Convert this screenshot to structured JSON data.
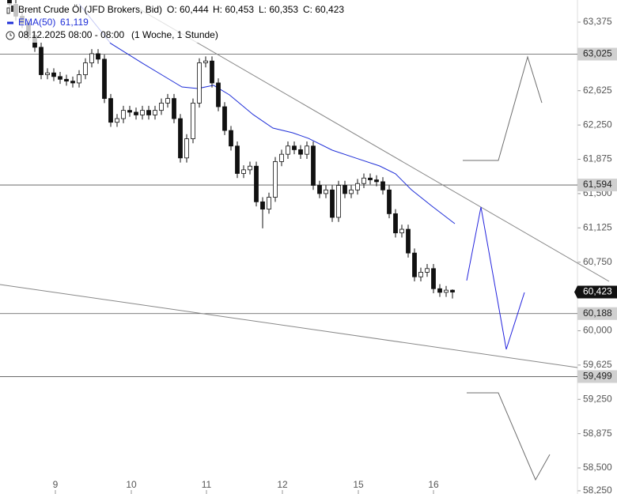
{
  "chart_data": {
    "type": "candlestick",
    "header": {
      "instrument": "Brent Crude Öl (JFD Brokers, Bid)",
      "open": "O: 60,444",
      "high": "H: 60,453",
      "low": "L: 60,353",
      "close": "C: 60,423",
      "ema_name": "EMA(50)",
      "ema_value": "61,119",
      "period": "08.12.2025 08:00 - 08:00",
      "interval": "(1 Woche, 1 Stunde)"
    },
    "xlim": [
      -1.5,
      89.75
    ],
    "ylim": [
      58.215,
      63.617
    ],
    "xticks": [
      {
        "value": 7.25,
        "label": "9"
      },
      {
        "value": 19.25,
        "label": "10"
      },
      {
        "value": 31.125,
        "label": "11"
      },
      {
        "value": 43.125,
        "label": "12"
      },
      {
        "value": 55.125,
        "label": "15"
      },
      {
        "value": 67,
        "label": "16"
      }
    ],
    "yticks": [
      {
        "value": 63.375,
        "label": "63,375"
      },
      {
        "value": 62.625,
        "label": "62,625"
      },
      {
        "value": 62.25,
        "label": "62,250"
      },
      {
        "value": 61.875,
        "label": "61,875"
      },
      {
        "value": 61.5,
        "label": "61,500"
      },
      {
        "value": 61.125,
        "label": "61,125"
      },
      {
        "value": 60.75,
        "label": "60,750"
      },
      {
        "value": 60,
        "label": "60,000"
      },
      {
        "value": 59.625,
        "label": "59,625"
      },
      {
        "value": 59.25,
        "label": "59,250"
      },
      {
        "value": 58.875,
        "label": "58,875"
      },
      {
        "value": 58.5,
        "label": "58,500"
      },
      {
        "value": 58.25,
        "label": "58,250"
      }
    ],
    "levels": [
      {
        "value": 63.025,
        "label": "63,025"
      },
      {
        "value": 61.594,
        "label": "61,594"
      },
      {
        "value": 60.188,
        "label": "60,188"
      },
      {
        "value": 59.499,
        "label": "59,499"
      }
    ],
    "last_price": {
      "value": 60.423,
      "label": "60,423"
    },
    "x": [
      0,
      1,
      2,
      3,
      4,
      5,
      6,
      7,
      8,
      9,
      10,
      11,
      12,
      13,
      14,
      15,
      16,
      17,
      18,
      19,
      20,
      21,
      22,
      23,
      24,
      25,
      26,
      27,
      28,
      29,
      30,
      31,
      32,
      33,
      34,
      35,
      36,
      37,
      38,
      39,
      40,
      41,
      42,
      43,
      44,
      45,
      46,
      47,
      48,
      49,
      50,
      51,
      52,
      53,
      54,
      55,
      56,
      57,
      58,
      59,
      60,
      61,
      62,
      63,
      64,
      65,
      66,
      67,
      68,
      69,
      70
    ],
    "open": [
      63.62,
      63.57,
      63.44,
      63.36,
      63.23,
      63.1,
      62.8,
      62.82,
      62.78,
      62.75,
      62.73,
      62.71,
      62.8,
      62.93,
      63.03,
      62.97,
      62.54,
      62.28,
      62.32,
      62.41,
      62.39,
      62.36,
      62.41,
      62.36,
      62.41,
      62.49,
      62.54,
      62.32,
      61.89,
      62.1,
      62.49,
      62.93,
      62.95,
      62.71,
      62.45,
      62.19,
      62.02,
      61.72,
      61.76,
      61.8,
      61.41,
      61.33,
      61.46,
      61.85,
      61.93,
      62.02,
      61.98,
      61.93,
      62.02,
      61.59,
      61.5,
      61.54,
      61.24,
      61.59,
      61.5,
      61.54,
      61.61,
      61.67,
      61.65,
      61.63,
      61.54,
      61.28,
      61.07,
      61.11,
      60.85,
      60.59,
      60.64,
      60.68,
      60.46,
      60.42,
      60.444
    ],
    "high": [
      63.67,
      63.62,
      63.49,
      63.41,
      63.28,
      63.15,
      62.87,
      62.87,
      62.83,
      62.8,
      62.78,
      62.85,
      62.98,
      63.08,
      63.08,
      63.02,
      62.59,
      62.37,
      62.46,
      62.46,
      62.44,
      62.46,
      62.46,
      62.46,
      62.54,
      62.59,
      62.59,
      62.37,
      62.15,
      62.54,
      62.98,
      63.0,
      63.0,
      62.76,
      62.5,
      62.24,
      62.07,
      61.81,
      61.85,
      61.85,
      61.46,
      61.51,
      61.9,
      61.98,
      62.07,
      62.07,
      62.03,
      62.07,
      62.07,
      61.64,
      61.59,
      61.59,
      61.64,
      61.64,
      61.59,
      61.66,
      61.72,
      61.72,
      61.7,
      61.68,
      61.59,
      61.33,
      61.16,
      61.16,
      60.9,
      60.69,
      60.73,
      60.73,
      60.51,
      60.49,
      60.453
    ],
    "low": [
      63.52,
      63.39,
      63.31,
      63.18,
      63.05,
      62.75,
      62.75,
      62.73,
      62.7,
      62.68,
      62.66,
      62.66,
      62.75,
      62.88,
      62.92,
      62.49,
      62.23,
      62.23,
      62.27,
      62.34,
      62.31,
      62.31,
      62.31,
      62.31,
      62.36,
      62.44,
      62.27,
      61.84,
      61.84,
      62.05,
      62.44,
      62.88,
      62.66,
      62.4,
      62.14,
      61.97,
      61.67,
      61.67,
      61.71,
      61.36,
      61.12,
      61.28,
      61.41,
      61.8,
      61.88,
      61.93,
      61.88,
      61.88,
      61.54,
      61.45,
      61.45,
      61.19,
      61.19,
      61.45,
      61.45,
      61.49,
      61.56,
      61.6,
      61.58,
      61.49,
      61.23,
      61.02,
      61.02,
      60.8,
      60.54,
      60.54,
      60.59,
      60.41,
      60.37,
      60.37,
      60.353
    ],
    "close": [
      63.57,
      63.44,
      63.36,
      63.23,
      63.1,
      62.8,
      62.82,
      62.78,
      62.75,
      62.73,
      62.71,
      62.8,
      62.93,
      63.03,
      62.97,
      62.54,
      62.28,
      62.32,
      62.41,
      62.39,
      62.36,
      62.41,
      62.36,
      62.41,
      62.49,
      62.54,
      62.32,
      61.89,
      62.1,
      62.49,
      62.93,
      62.95,
      62.71,
      62.45,
      62.19,
      62.02,
      61.72,
      61.76,
      61.8,
      61.41,
      61.33,
      61.46,
      61.85,
      61.93,
      62.02,
      61.98,
      61.93,
      62.02,
      61.59,
      61.5,
      61.54,
      61.24,
      61.59,
      61.5,
      61.54,
      61.61,
      61.67,
      61.65,
      61.63,
      61.54,
      61.28,
      61.07,
      61.11,
      60.85,
      60.59,
      60.64,
      60.68,
      60.46,
      60.42,
      60.444,
      60.423
    ],
    "ema": {
      "color": "#1f2fd8",
      "x": [
        11,
        16,
        21,
        24.75,
        27.25,
        29.75,
        32.25,
        34.75,
        38.5,
        41.625,
        44.75,
        47.25,
        51,
        54.75,
        58.5,
        61,
        63.5,
        66.625,
        70.375
      ],
      "values": [
        63.574,
        63.142,
        62.926,
        62.77,
        62.666,
        62.649,
        62.684,
        62.58,
        62.364,
        62.217,
        62.165,
        62.104,
        61.975,
        61.888,
        61.802,
        61.716,
        61.543,
        61.37,
        61.171
      ]
    },
    "trendlines": [
      {
        "color": "#888888",
        "x": [
          19.75,
          94.75
        ],
        "values": [
          63.548,
          60.54
        ]
      },
      {
        "color": "#888888",
        "x": [
          -1.5,
          89.75
        ],
        "values": [
          60.506,
          59.598
        ]
      }
    ],
    "scenarios": [
      {
        "color": "#6e6e6e",
        "x": [
          71.625,
          77.25,
          81.875,
          84.125
        ],
        "values": [
          61.862,
          61.862,
          62.995,
          62.493
        ]
      },
      {
        "color": "#2222dd",
        "x": [
          72.25,
          74.5,
          78.5,
          81.375
        ],
        "values": [
          60.549,
          61.353,
          59.797,
          60.419
        ]
      },
      {
        "color": "#6e6e6e",
        "x": [
          72.25,
          77.25,
          83.125,
          85.375
        ],
        "values": [
          59.321,
          59.321,
          58.371,
          58.647
        ]
      }
    ]
  }
}
